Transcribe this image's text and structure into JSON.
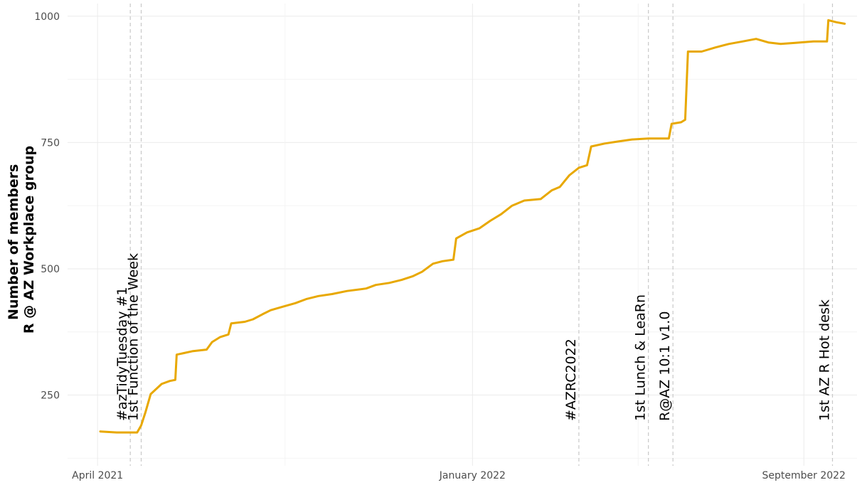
{
  "chart_data": {
    "type": "line",
    "title": "",
    "xlabel": "",
    "ylabel": "Number of members\nR @ AZ Workplace group",
    "ylabel_lines": [
      "Number of members",
      "R @ AZ Workplace group"
    ],
    "xlim": [
      "2021-03-10",
      "2022-10-10"
    ],
    "ylim": [
      110,
      1025
    ],
    "grid": true,
    "legend": "none",
    "y_ticks": [
      250,
      500,
      750,
      1000
    ],
    "y_tick_labels": [
      "250",
      "500",
      "750",
      "1000"
    ],
    "x_ticks": [
      "2021-04-01",
      "2022-01-01",
      "2022-09-01"
    ],
    "x_tick_labels": [
      "April 2021",
      "January 2022",
      "September 2022"
    ],
    "series": [
      {
        "color": "#E8A800",
        "points": [
          [
            "2021-04-03",
            178
          ],
          [
            "2021-04-15",
            176
          ],
          [
            "2021-04-30",
            176
          ],
          [
            "2021-05-03",
            190
          ],
          [
            "2021-05-06",
            215
          ],
          [
            "2021-05-10",
            252
          ],
          [
            "2021-05-14",
            262
          ],
          [
            "2021-05-18",
            272
          ],
          [
            "2021-05-24",
            278
          ],
          [
            "2021-05-28",
            280
          ],
          [
            "2021-05-29",
            330
          ],
          [
            "2021-06-03",
            333
          ],
          [
            "2021-06-10",
            337
          ],
          [
            "2021-06-20",
            340
          ],
          [
            "2021-06-24",
            355
          ],
          [
            "2021-06-30",
            365
          ],
          [
            "2021-07-06",
            370
          ],
          [
            "2021-07-08",
            392
          ],
          [
            "2021-07-18",
            395
          ],
          [
            "2021-07-24",
            400
          ],
          [
            "2021-07-31",
            410
          ],
          [
            "2021-08-06",
            418
          ],
          [
            "2021-08-15",
            425
          ],
          [
            "2021-08-24",
            432
          ],
          [
            "2021-09-01",
            440
          ],
          [
            "2021-09-10",
            446
          ],
          [
            "2021-09-20",
            450
          ],
          [
            "2021-10-01",
            456
          ],
          [
            "2021-10-15",
            461
          ],
          [
            "2021-10-22",
            468
          ],
          [
            "2021-11-01",
            472
          ],
          [
            "2021-11-10",
            478
          ],
          [
            "2021-11-18",
            485
          ],
          [
            "2021-11-25",
            494
          ],
          [
            "2021-12-03",
            510
          ],
          [
            "2021-12-10",
            515
          ],
          [
            "2021-12-18",
            518
          ],
          [
            "2021-12-20",
            560
          ],
          [
            "2021-12-28",
            572
          ],
          [
            "2022-01-06",
            580
          ],
          [
            "2022-01-14",
            595
          ],
          [
            "2022-01-22",
            608
          ],
          [
            "2022-01-30",
            625
          ],
          [
            "2022-02-08",
            635
          ],
          [
            "2022-02-20",
            638
          ],
          [
            "2022-02-28",
            655
          ],
          [
            "2022-03-06",
            662
          ],
          [
            "2022-03-13",
            685
          ],
          [
            "2022-03-20",
            700
          ],
          [
            "2022-03-26",
            705
          ],
          [
            "2022-03-29",
            742
          ],
          [
            "2022-04-08",
            748
          ],
          [
            "2022-04-18",
            752
          ],
          [
            "2022-04-28",
            756
          ],
          [
            "2022-05-10",
            758
          ],
          [
            "2022-05-25",
            758
          ],
          [
            "2022-05-27",
            787
          ],
          [
            "2022-06-03",
            790
          ],
          [
            "2022-06-06",
            795
          ],
          [
            "2022-06-08",
            930
          ],
          [
            "2022-06-18",
            930
          ],
          [
            "2022-06-28",
            938
          ],
          [
            "2022-07-08",
            945
          ],
          [
            "2022-07-18",
            950
          ],
          [
            "2022-07-28",
            955
          ],
          [
            "2022-08-06",
            948
          ],
          [
            "2022-08-15",
            945
          ],
          [
            "2022-08-25",
            947
          ],
          [
            "2022-09-08",
            950
          ],
          [
            "2022-09-18",
            950
          ],
          [
            "2022-09-19",
            992
          ],
          [
            "2022-09-25",
            988
          ],
          [
            "2022-10-01",
            985
          ]
        ]
      }
    ],
    "annotations": [
      {
        "date": "2021-04-25",
        "label": "#azTidyTuesday #1"
      },
      {
        "date": "2021-05-03",
        "label": "1st Function of the Week"
      },
      {
        "date": "2022-03-20",
        "label": "#AZRC2022"
      },
      {
        "date": "2022-05-10",
        "label": "1st Lunch & LeaRn"
      },
      {
        "date": "2022-05-28",
        "label": "R@AZ 10:1 v1.0"
      },
      {
        "date": "2022-09-22",
        "label": "1st AZ R Hot desk"
      }
    ]
  }
}
